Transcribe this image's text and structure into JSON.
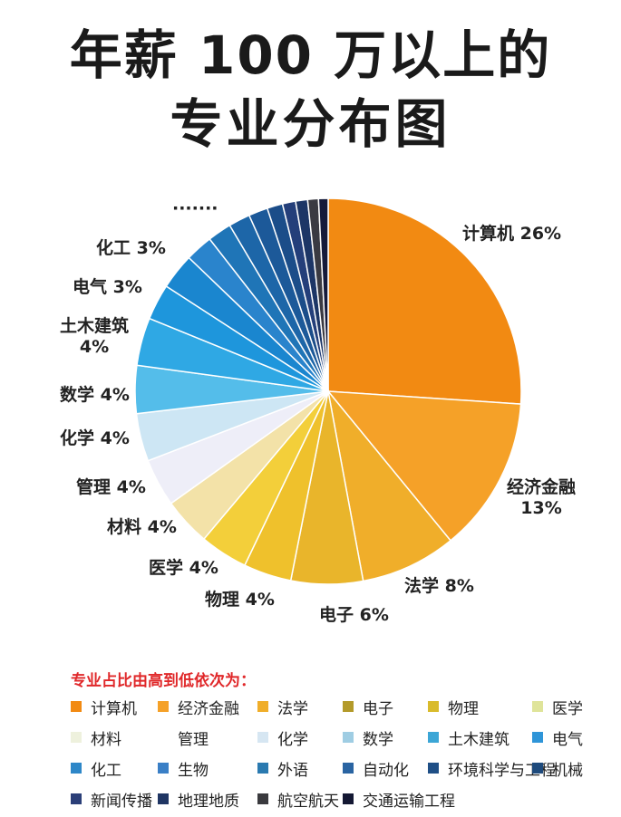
{
  "title": {
    "line1": "年薪 100 万以上的",
    "line2": "专业分布图"
  },
  "chart_data": {
    "type": "pie",
    "start": "12 o'clock",
    "direction": "clockwise",
    "slices": [
      {
        "name": "计算机",
        "value": 26,
        "label": "计算机 26%",
        "color": "#f28a12"
      },
      {
        "name": "经济金融",
        "value": 13,
        "label": "经济金融\n13%",
        "color": "#f5a128"
      },
      {
        "name": "法学",
        "value": 8,
        "label": "法学 8%",
        "color": "#f0ae2a"
      },
      {
        "name": "电子",
        "value": 6,
        "label": "电子 6%",
        "color": "#e9b52b"
      },
      {
        "name": "物理",
        "value": 4,
        "label": "物理 4%",
        "color": "#efc12c"
      },
      {
        "name": "医学",
        "value": 4,
        "label": "医学 4%",
        "color": "#f3cf3a"
      },
      {
        "name": "材料",
        "value": 4,
        "label": "材料 4%",
        "color": "#f3e2a8"
      },
      {
        "name": "管理",
        "value": 4,
        "label": "管理 4%",
        "color": "#eeeef8"
      },
      {
        "name": "化学",
        "value": 4,
        "label": "化学 4%",
        "color": "#cde6f4"
      },
      {
        "name": "数学",
        "value": 4,
        "label": "数学 4%",
        "color": "#54bdea"
      },
      {
        "name": "土木建筑",
        "value": 4,
        "label": "土木建筑\n4%",
        "color": "#2fa8e4"
      },
      {
        "name": "电气",
        "value": 3,
        "label": "电气 3%",
        "color": "#1e96dc"
      },
      {
        "name": "化工",
        "value": 3,
        "label": "化工 3%",
        "color": "#1a86cf"
      },
      {
        "name": "生物",
        "value": 2.3,
        "label": "",
        "color": "#2a84cc"
      },
      {
        "name": "外语",
        "value": 2,
        "label": "",
        "color": "#1f75b7"
      },
      {
        "name": "自动化",
        "value": 1.8,
        "label": "",
        "color": "#1d66a8"
      },
      {
        "name": "环境科学与工程",
        "value": 1.6,
        "label": "",
        "color": "#1c5999"
      },
      {
        "name": "机械",
        "value": 1.3,
        "label": "",
        "color": "#1b4d89"
      },
      {
        "name": "新闻传播",
        "value": 1.1,
        "label": "",
        "color": "#243f7a"
      },
      {
        "name": "地理地质",
        "value": 1,
        "label": "",
        "color": "#1d3666"
      },
      {
        "name": "航空航天",
        "value": 0.9,
        "label": "",
        "color": "#3a3a42"
      },
      {
        "name": "交通运输工程",
        "value": 0.8,
        "label": "",
        "color": "#151a3a"
      }
    ],
    "ellipsis_label": "·······"
  },
  "legend": {
    "title": "专业占比由高到低依次为：",
    "items": [
      {
        "label": "计算机",
        "color": "#f28a12"
      },
      {
        "label": "经济金融",
        "color": "#f5a128"
      },
      {
        "label": "法学",
        "color": "#f0ae2a"
      },
      {
        "label": "电子",
        "color": "#b39a2a"
      },
      {
        "label": "物理",
        "color": "#d9bb2c"
      },
      {
        "label": "医学",
        "color": "#dfe49a"
      },
      {
        "label": "材料",
        "color": "#eef1dd"
      },
      {
        "label": "管理",
        "color": "#ffffff"
      },
      {
        "label": "化学",
        "color": "#d6e6f2"
      },
      {
        "label": "数学",
        "color": "#9fcde3"
      },
      {
        "label": "土木建筑",
        "color": "#3ca6d6"
      },
      {
        "label": "电气",
        "color": "#2f95d8"
      },
      {
        "label": "化工",
        "color": "#2e87c8"
      },
      {
        "label": "生物",
        "color": "#3a7fc6"
      },
      {
        "label": "外语",
        "color": "#2a7ab0"
      },
      {
        "label": "自动化",
        "color": "#2a64a2"
      },
      {
        "label": "环境科学与工程",
        "color": "#1f4f86"
      },
      {
        "label": "机械",
        "color": "#1e4a7c"
      },
      {
        "label": "新闻传播",
        "color": "#2b3f78"
      },
      {
        "label": "地理地质",
        "color": "#1f3563"
      },
      {
        "label": "航空航天",
        "color": "#3a3a3e"
      },
      {
        "label": "交通运输工程",
        "color": "#141833"
      }
    ]
  }
}
